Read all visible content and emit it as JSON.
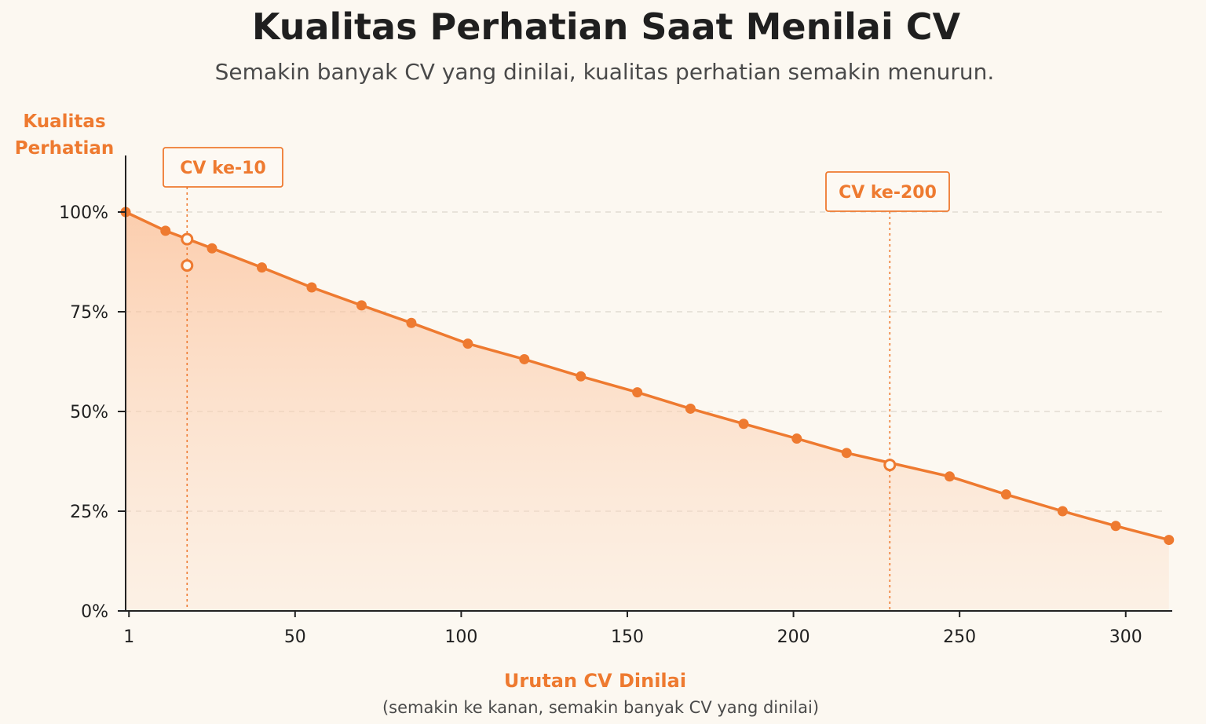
{
  "chart_data": {
    "type": "area",
    "title": "Kualitas Perhatian Saat Menilai CV",
    "subtitle": "Semakin banyak CV yang dinilai, kualitas perhatian semakin menurun.",
    "ylabel_line1": "Kualitas",
    "ylabel_line2": "Perhatian",
    "xlabel": "Urutan CV Dinilai",
    "xlabel_note": "(semakin ke kanan, semakin banyak CV yang dinilai)",
    "xlim": [
      0,
      315
    ],
    "ylim": [
      0,
      100
    ],
    "x_ticks": [
      {
        "value": 1,
        "label": "1"
      },
      {
        "value": 51,
        "label": "50"
      },
      {
        "value": 101,
        "label": "100"
      },
      {
        "value": 151,
        "label": "150"
      },
      {
        "value": 201,
        "label": "200"
      },
      {
        "value": 251,
        "label": "250"
      },
      {
        "value": 301,
        "label": "300"
      }
    ],
    "y_ticks": [
      {
        "value": 0,
        "label": "0%"
      },
      {
        "value": 25,
        "label": "25%"
      },
      {
        "value": 50,
        "label": "50%"
      },
      {
        "value": 75,
        "label": "75%"
      },
      {
        "value": 100,
        "label": "100%"
      }
    ],
    "grid": "horizontal-dashed",
    "series": [
      {
        "x": [
          0,
          12,
          26,
          41,
          56,
          71,
          86,
          103,
          120,
          137,
          154,
          170,
          186,
          202,
          217,
          248,
          265,
          282,
          298,
          314
        ],
        "y": [
          100,
          95.3,
          90.9,
          86.1,
          81.1,
          76.6,
          72.2,
          67.0,
          63.1,
          58.8,
          54.8,
          50.7,
          46.9,
          43.2,
          39.6,
          33.7,
          29.2,
          25.0,
          21.3,
          17.8
        ],
        "color": "#ee7a30"
      }
    ],
    "annotations": [
      {
        "label": "CV ke-10",
        "x": 18.5,
        "points_y": [
          93.2,
          86.6
        ]
      },
      {
        "label": "CV ke-200",
        "x": 230,
        "points_y": [
          36.6
        ]
      }
    ]
  },
  "colors": {
    "accent": "#ee7a30",
    "background": "#fcf8f1"
  }
}
